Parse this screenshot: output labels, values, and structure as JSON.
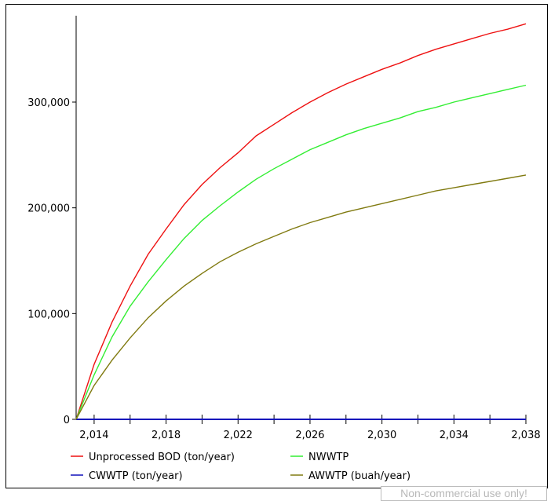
{
  "chart_data": {
    "type": "line",
    "title": "",
    "xlabel": "",
    "ylabel": "",
    "xlim": [
      2013,
      2038
    ],
    "ylim": [
      0,
      375000
    ],
    "x_ticks": [
      2014,
      2018,
      2022,
      2026,
      2030,
      2034,
      2038
    ],
    "x_tick_labels": [
      "2,014",
      "2,018",
      "2,022",
      "2,026",
      "2,030",
      "2,034",
      "2,038"
    ],
    "y_ticks": [
      0,
      100000,
      200000,
      300000
    ],
    "y_tick_labels": [
      "0",
      "100,000",
      "200,000",
      "300,000"
    ],
    "grid": false,
    "legend_position": "bottom",
    "x": [
      2013,
      2014,
      2015,
      2016,
      2017,
      2018,
      2019,
      2020,
      2021,
      2022,
      2023,
      2024,
      2025,
      2026,
      2027,
      2028,
      2029,
      2030,
      2031,
      2032,
      2033,
      2034,
      2035,
      2036,
      2037,
      2038
    ],
    "series": [
      {
        "name": "Unprocessed BOD (ton/year)",
        "color": "#ee1111",
        "values": [
          0,
          52000,
          92000,
          126000,
          156000,
          180000,
          203000,
          222000,
          238000,
          252000,
          268000,
          279000,
          290000,
          300000,
          309000,
          317000,
          324000,
          331000,
          337000,
          344000,
          350000,
          355000,
          360000,
          365000,
          369000,
          374000
        ]
      },
      {
        "name": "NWWTP",
        "color": "#33ee33",
        "values": [
          0,
          42000,
          78000,
          107000,
          130000,
          151000,
          171000,
          188000,
          202000,
          215000,
          227000,
          237000,
          246000,
          255000,
          262000,
          269000,
          275000,
          280000,
          285000,
          291000,
          295000,
          300000,
          304000,
          308000,
          312000,
          316000
        ]
      },
      {
        "name": "CWWTP (ton/year)",
        "color": "#1111bb",
        "values": [
          0,
          0,
          0,
          0,
          0,
          0,
          0,
          0,
          0,
          0,
          0,
          0,
          0,
          0,
          0,
          0,
          0,
          0,
          0,
          0,
          0,
          0,
          0,
          0,
          0,
          0
        ]
      },
      {
        "name": "AWWTP (buah/year)",
        "color": "#807a10",
        "values": [
          0,
          32000,
          56000,
          77000,
          96000,
          112000,
          126000,
          138000,
          149000,
          158000,
          166000,
          173000,
          180000,
          186000,
          191000,
          196000,
          200000,
          204000,
          208000,
          212000,
          216000,
          219000,
          222000,
          225000,
          228000,
          231000
        ]
      }
    ]
  },
  "watermark": "Non-commercial use only!"
}
